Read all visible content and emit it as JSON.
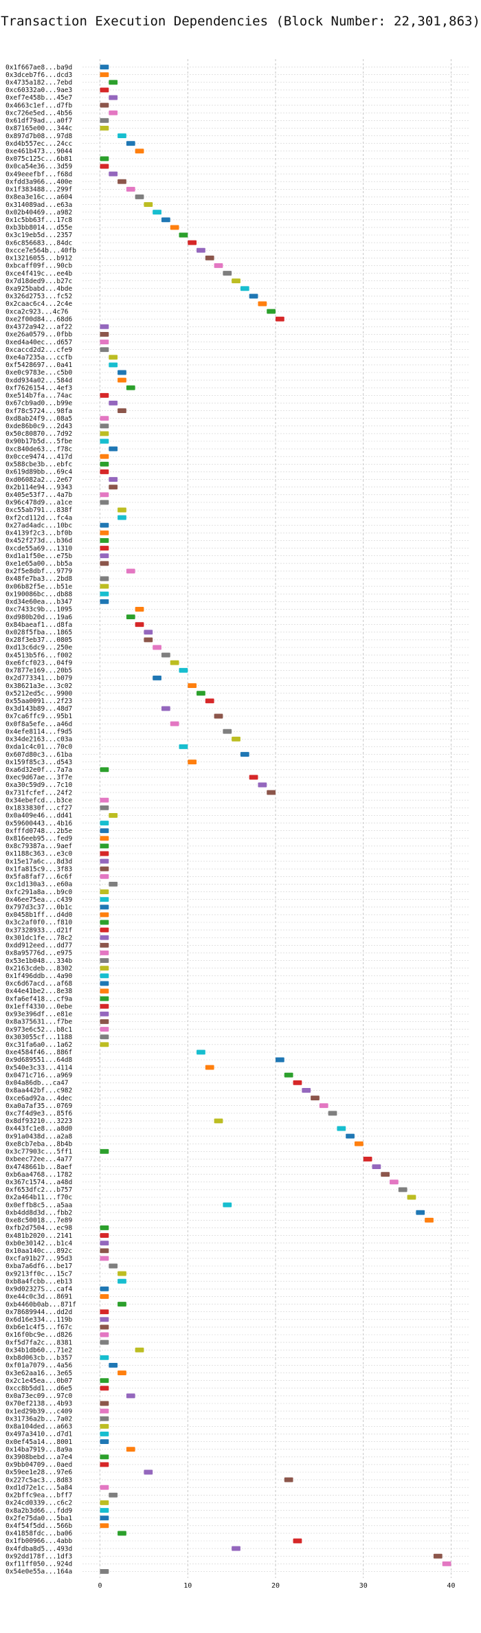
{
  "chart_data": {
    "type": "bar",
    "title": "Transaction Execution Dependencies (Block Number: 22,301,863)",
    "xlabel": "",
    "ylabel": "",
    "xlim": [
      -2,
      42
    ],
    "xticks": [
      0,
      10,
      20,
      30,
      40
    ],
    "grid": true,
    "legend": "none",
    "bar_width": 1,
    "palette": [
      "#1f77b4",
      "#ff7f0e",
      "#2ca02c",
      "#d62728",
      "#9467bd",
      "#8c564b",
      "#e377c2",
      "#7f7f7f",
      "#bcbd22",
      "#17becf"
    ],
    "transactions": [
      {
        "label": "0x1f667ae8...ba9d",
        "start": 0
      },
      {
        "label": "0x3dceb7f6...dcd3",
        "start": 0
      },
      {
        "label": "0x4735a182...7ebd",
        "start": 1
      },
      {
        "label": "0xc60332a0...9ae3",
        "start": 0
      },
      {
        "label": "0xef7e458b...45e7",
        "start": 1
      },
      {
        "label": "0x4663c1ef...d7fb",
        "start": 0
      },
      {
        "label": "0xc726e5ed...4b56",
        "start": 1
      },
      {
        "label": "0x61df79ad...a0f7",
        "start": 0
      },
      {
        "label": "0x87165e00...344c",
        "start": 0
      },
      {
        "label": "0x897d7b08...97d8",
        "start": 2
      },
      {
        "label": "0xd4b557ec...24cc",
        "start": 3
      },
      {
        "label": "0xe461b473...9044",
        "start": 4
      },
      {
        "label": "0x075c125c...6b81",
        "start": 0
      },
      {
        "label": "0x0ca54e36...3d59",
        "start": 0
      },
      {
        "label": "0x49eeefbf...f68d",
        "start": 1
      },
      {
        "label": "0xfdd3a966...400e",
        "start": 2
      },
      {
        "label": "0x1f383488...299f",
        "start": 3
      },
      {
        "label": "0x8ea3e16c...a604",
        "start": 4
      },
      {
        "label": "0x314089ad...e63a",
        "start": 5
      },
      {
        "label": "0x02b40469...a982",
        "start": 6
      },
      {
        "label": "0x1c5bb63f...17c8",
        "start": 7
      },
      {
        "label": "0xb3bb8014...d55e",
        "start": 8
      },
      {
        "label": "0x3c19eb5d...2357",
        "start": 9
      },
      {
        "label": "0x6c856683...84dc",
        "start": 10
      },
      {
        "label": "0xcce7e564b...40fb",
        "start": 11
      },
      {
        "label": "0x13216055...b912",
        "start": 12
      },
      {
        "label": "0xbcaff09f...90cb",
        "start": 13
      },
      {
        "label": "0xce4f419c...ee4b",
        "start": 14
      },
      {
        "label": "0x7d18ded9...b27c",
        "start": 15
      },
      {
        "label": "0xa925babd...4bde",
        "start": 16
      },
      {
        "label": "0x326d2753...fc52",
        "start": 17
      },
      {
        "label": "0x2caac6c4...2c4e",
        "start": 18
      },
      {
        "label": "0xca2c923...4c76",
        "start": 19
      },
      {
        "label": "0xe2f00d84...68d6",
        "start": 20
      },
      {
        "label": "0x4372a942...af22",
        "start": 0
      },
      {
        "label": "0xe26a0579...0fbb",
        "start": 0
      },
      {
        "label": "0xed4a40ec...d657",
        "start": 0
      },
      {
        "label": "0xcaccd2d2...cfe9",
        "start": 0
      },
      {
        "label": "0xe4a7235a...ccfb",
        "start": 1
      },
      {
        "label": "0xf5428697...0a41",
        "start": 1
      },
      {
        "label": "0xe0c9783e...c5b0",
        "start": 2
      },
      {
        "label": "0xdd934a02...584d",
        "start": 2
      },
      {
        "label": "0xf7626154...4ef3",
        "start": 3
      },
      {
        "label": "0xe514b7fa...74ac",
        "start": 0
      },
      {
        "label": "0x67cb9ad0...b99e",
        "start": 1
      },
      {
        "label": "0xf78c5724...98fa",
        "start": 2
      },
      {
        "label": "0xd8ab24f9...08a5",
        "start": 0
      },
      {
        "label": "0xde86b0c9...2d43",
        "start": 0
      },
      {
        "label": "0x50c80870...7d92",
        "start": 0
      },
      {
        "label": "0x90b17b5d...5fbe",
        "start": 0
      },
      {
        "label": "0xc840de63...f78c",
        "start": 1
      },
      {
        "label": "0x0cce9474...417d",
        "start": 0
      },
      {
        "label": "0x588cbe3b...ebfc",
        "start": 0
      },
      {
        "label": "0x619d89bb...69c4",
        "start": 0
      },
      {
        "label": "0xd06082a2...2e67",
        "start": 1
      },
      {
        "label": "0x2b114e94...9343",
        "start": 1
      },
      {
        "label": "0x405e53f7...4a7b",
        "start": 0
      },
      {
        "label": "0x96c478d9...a1ce",
        "start": 0
      },
      {
        "label": "0xc55ab791...838f",
        "start": 2
      },
      {
        "label": "0xf2cd112d...fc4a",
        "start": 2
      },
      {
        "label": "0x27ad4adc...10bc",
        "start": 0
      },
      {
        "label": "0x4139f2c3...bf0b",
        "start": 0
      },
      {
        "label": "0x452f273d...b36d",
        "start": 0
      },
      {
        "label": "0xcde55a69...1310",
        "start": 0
      },
      {
        "label": "0xd1a1f50e...e75b",
        "start": 0
      },
      {
        "label": "0xe1e65a00...bb5a",
        "start": 0
      },
      {
        "label": "0x2f5e8dbf...9779",
        "start": 3
      },
      {
        "label": "0x48fe7ba3...2bd8",
        "start": 0
      },
      {
        "label": "0x06b82f5e...b51e",
        "start": 0
      },
      {
        "label": "0x190086bc...db88",
        "start": 0
      },
      {
        "label": "0xd34e60ea...b347",
        "start": 0
      },
      {
        "label": "0xc7433c9b...1095",
        "start": 4
      },
      {
        "label": "0xd980b20d...19a6",
        "start": 3
      },
      {
        "label": "0x84baeaf1...d8fa",
        "start": 4
      },
      {
        "label": "0x028f5fba...1865",
        "start": 5
      },
      {
        "label": "0x28f3eb37...0805",
        "start": 5
      },
      {
        "label": "0xd13c6dc9...250e",
        "start": 6
      },
      {
        "label": "0x4513b5f6...f002",
        "start": 7
      },
      {
        "label": "0xe6fcf023...04f9",
        "start": 8
      },
      {
        "label": "0x7877e169...20b5",
        "start": 9
      },
      {
        "label": "0x2d773341...b079",
        "start": 6
      },
      {
        "label": "0x38621a3e...3c02",
        "start": 10
      },
      {
        "label": "0x5212ed5c...9900",
        "start": 11
      },
      {
        "label": "0x55aa0091...2f23",
        "start": 12
      },
      {
        "label": "0x3d143b89...48d7",
        "start": 7
      },
      {
        "label": "0x7ca6ffc9...95b1",
        "start": 13
      },
      {
        "label": "0x0f8a5efe...a46d",
        "start": 8
      },
      {
        "label": "0x4efe8114...f9d5",
        "start": 14
      },
      {
        "label": "0x34de2163...c03a",
        "start": 15
      },
      {
        "label": "0xda1c4c01...70c0",
        "start": 9
      },
      {
        "label": "0x607d80c3...61ba",
        "start": 16
      },
      {
        "label": "0x159f85c3...d543",
        "start": 10
      },
      {
        "label": "0xa6d32e0f...7a7a",
        "start": 0
      },
      {
        "label": "0xec9d67ae...3f7e",
        "start": 17
      },
      {
        "label": "0xa30c59d9...7c10",
        "start": 18
      },
      {
        "label": "0x731fcfef...24f2",
        "start": 19
      },
      {
        "label": "0x34ebefcd...b3ce",
        "start": 0
      },
      {
        "label": "0x1833830f...cf27",
        "start": 0
      },
      {
        "label": "0x0a409e46...dd41",
        "start": 1
      },
      {
        "label": "0x59600443...4b16",
        "start": 0
      },
      {
        "label": "0xfffd0748...2b5e",
        "start": 0
      },
      {
        "label": "0x816eeb95...fed9",
        "start": 0
      },
      {
        "label": "0x8c79387a...9aef",
        "start": 0
      },
      {
        "label": "0x1188c363...e3c0",
        "start": 0
      },
      {
        "label": "0x15e17a6c...8d3d",
        "start": 0
      },
      {
        "label": "0x1fa815c9...3f83",
        "start": 0
      },
      {
        "label": "0x5fa8faf7...6c6f",
        "start": 0
      },
      {
        "label": "0xc1d130a3...e60a",
        "start": 1
      },
      {
        "label": "0xfc291a8a...b9c0",
        "start": 0
      },
      {
        "label": "0x46ee75ea...c439",
        "start": 0
      },
      {
        "label": "0x797d3c37...0b1c",
        "start": 0
      },
      {
        "label": "0x0458b1ff...d4d0",
        "start": 0
      },
      {
        "label": "0x3c2af0f0...f810",
        "start": 0
      },
      {
        "label": "0x37328933...d21f",
        "start": 0
      },
      {
        "label": "0x301dc1fe...78c2",
        "start": 0
      },
      {
        "label": "0xdd912eed...dd77",
        "start": 0
      },
      {
        "label": "0x8a95776d...e975",
        "start": 0
      },
      {
        "label": "0x53e1b048...334b",
        "start": 0
      },
      {
        "label": "0x2163cdeb...8302",
        "start": 0
      },
      {
        "label": "0x1f496ddb...4a90",
        "start": 0
      },
      {
        "label": "0xc6d67acd...af68",
        "start": 0
      },
      {
        "label": "0x44e41be2...8e38",
        "start": 0
      },
      {
        "label": "0xfa6ef418...cf9a",
        "start": 0
      },
      {
        "label": "0x1eff4330...0ebe",
        "start": 0
      },
      {
        "label": "0x93e396df...e81e",
        "start": 0
      },
      {
        "label": "0x8a375631...f7be",
        "start": 0
      },
      {
        "label": "0x973e6c52...b8c1",
        "start": 0
      },
      {
        "label": "0x303055cf...1188",
        "start": 0
      },
      {
        "label": "0xc31fa6a0...1a62",
        "start": 0
      },
      {
        "label": "0xe4584f46...886f",
        "start": 11
      },
      {
        "label": "0x9d689551...64d8",
        "start": 20
      },
      {
        "label": "0x540e3c33...4114",
        "start": 12
      },
      {
        "label": "0x0471c716...a969",
        "start": 21
      },
      {
        "label": "0x04a86db...ca47",
        "start": 22
      },
      {
        "label": "0x8aa442bf...c982",
        "start": 23
      },
      {
        "label": "0xce6ad92a...4dec",
        "start": 24
      },
      {
        "label": "0xa0a7af35...0769",
        "start": 25
      },
      {
        "label": "0xc7f4d9e3...85f6",
        "start": 26
      },
      {
        "label": "0x8df93210...3223",
        "start": 13
      },
      {
        "label": "0x443fc1e8...a8d0",
        "start": 27
      },
      {
        "label": "0x91a0438d...a2a8",
        "start": 28
      },
      {
        "label": "0xe8cb7eba...8b4b",
        "start": 29
      },
      {
        "label": "0x3c77903c...5ff1",
        "start": 0
      },
      {
        "label": "0xbeec72ee...4a77",
        "start": 30
      },
      {
        "label": "0x4748661b...8aef",
        "start": 31
      },
      {
        "label": "0xb6aa4768...1782",
        "start": 32
      },
      {
        "label": "0x367c1574...a48d",
        "start": 33
      },
      {
        "label": "0xf653dfc2...b757",
        "start": 34
      },
      {
        "label": "0x2a464b11...f70c",
        "start": 35
      },
      {
        "label": "0x0effb8c5...a5aa",
        "start": 14
      },
      {
        "label": "0xb4dd8d3d...fbb2",
        "start": 36
      },
      {
        "label": "0xe8c50018...7e89",
        "start": 37
      },
      {
        "label": "0xfb2d7504...ec98",
        "start": 0
      },
      {
        "label": "0x481b2020...2141",
        "start": 0
      },
      {
        "label": "0xb0e30142...b1c4",
        "start": 0
      },
      {
        "label": "0x10aa140c...892c",
        "start": 0
      },
      {
        "label": "0xcfa91b27...95d3",
        "start": 0
      },
      {
        "label": "0xba7a6df6...be17",
        "start": 1
      },
      {
        "label": "0x9213ff0c...15c7",
        "start": 2
      },
      {
        "label": "0xb8a4fcbb...eb13",
        "start": 2
      },
      {
        "label": "0x9d02327S...caf4",
        "start": 0
      },
      {
        "label": "0xe44c0c3d...8691",
        "start": 0
      },
      {
        "label": "0xb4460b0ab...871f",
        "start": 2
      },
      {
        "label": "0x78689944...dd2d",
        "start": 0
      },
      {
        "label": "0x6d16e334...119b",
        "start": 0
      },
      {
        "label": "0xb6e1c4f5...f67c",
        "start": 0
      },
      {
        "label": "0x16f0bc9e...d826",
        "start": 0
      },
      {
        "label": "0xf5d7fa2c...8381",
        "start": 0
      },
      {
        "label": "0x34b1db60...71e2",
        "start": 4
      },
      {
        "label": "0xb8d063cb...b357",
        "start": 0
      },
      {
        "label": "0xf01a7079...4a56",
        "start": 1
      },
      {
        "label": "0x3e62aa16...3e65",
        "start": 2
      },
      {
        "label": "0x2c1e45ea...0b07",
        "start": 0
      },
      {
        "label": "0xcc8b5dd1...d6e5",
        "start": 0
      },
      {
        "label": "0x0a73ec09...97c0",
        "start": 3
      },
      {
        "label": "0x70ef2138...4b93",
        "start": 0
      },
      {
        "label": "0x1ed29b39...c409",
        "start": 0
      },
      {
        "label": "0x31736a2b...7a02",
        "start": 0
      },
      {
        "label": "0x8a104ded...a663",
        "start": 0
      },
      {
        "label": "0x497a3410...d7d1",
        "start": 0
      },
      {
        "label": "0x0ef45a14...8001",
        "start": 0
      },
      {
        "label": "0x14ba7919...8a9a",
        "start": 3
      },
      {
        "label": "0x3908bebd...a7e4",
        "start": 0
      },
      {
        "label": "0x9bb04709...0aed",
        "start": 0
      },
      {
        "label": "0x59ee1e28...97e6",
        "start": 5
      },
      {
        "label": "0x227c5ac3...8d83",
        "start": 21
      },
      {
        "label": "0xd1d72e1c...5a84",
        "start": 0
      },
      {
        "label": "0x2bffc9ea...bff7",
        "start": 1
      },
      {
        "label": "0x24cd0339...c6c2",
        "start": 0
      },
      {
        "label": "0x8a2b3d66...fdd9",
        "start": 0
      },
      {
        "label": "0x2fe75da0...5ba1",
        "start": 0
      },
      {
        "label": "0x4f54f5dd...566b",
        "start": 0
      },
      {
        "label": "0x41858fdc...ba06",
        "start": 2
      },
      {
        "label": "0x1fb00966...4abb",
        "start": 22
      },
      {
        "label": "0x4fdba8d5...493d",
        "start": 15
      },
      {
        "label": "0x92dd178f...1df3",
        "start": 38
      },
      {
        "label": "0xf11ff050...924d",
        "start": 39
      },
      {
        "label": "0x54e0e55a...164a",
        "start": 0
      }
    ]
  }
}
